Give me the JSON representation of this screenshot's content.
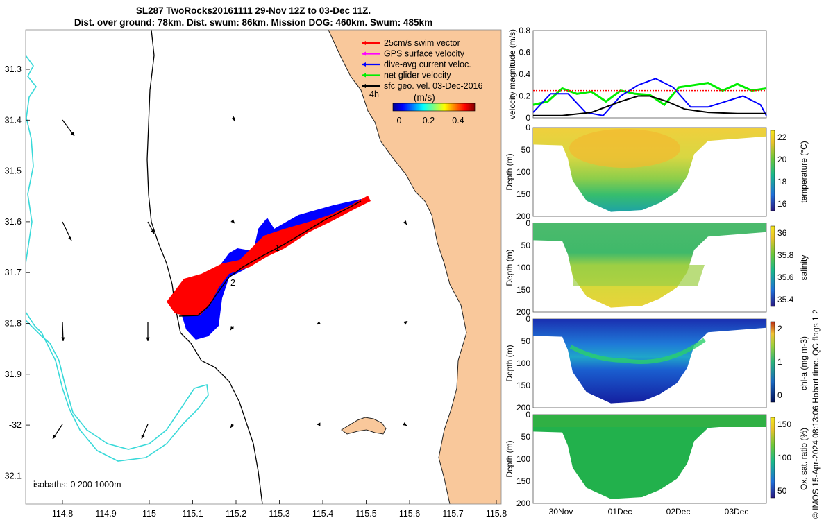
{
  "title": {
    "line1": "SL287 TwoRocks20161111 29-Nov 12Z to 03-Dec 11Z.",
    "line2": "Dist. over ground: 78km. Dist. swum: 86km. Mission DOG: 460km. Swum: 485km"
  },
  "colors": {
    "land": "#f9c89b",
    "isobath200": "#000000",
    "isobath1000": "#38d9d9",
    "swim": "#ff0000",
    "gps": "#ff00ff",
    "current": "#0000ff",
    "net": "#00ee00",
    "geo": "#000000"
  },
  "map": {
    "lon_ticks": [
      "114.8",
      "114.9",
      "115",
      "115.1",
      "115.2",
      "115.3",
      "115.4",
      "115.5",
      "115.6",
      "115.7",
      "115.8"
    ],
    "lat_ticks": [
      "31.3",
      "31.4",
      "31.5",
      "31.6",
      "31.7",
      "31.8",
      "31.9",
      "-32",
      "32.1"
    ],
    "legend": [
      {
        "label": "25cm/s swim vector",
        "color": "#ff0000"
      },
      {
        "label": "GPS surface velocity",
        "color": "#ff00ff"
      },
      {
        "label": "dive-avg current veloc.",
        "color": "#0000ff"
      },
      {
        "label": "net glider velocity",
        "color": "#00ee00"
      },
      {
        "label": "sfc geo. vel. 03-Dec-2016",
        "color": "#000000"
      }
    ],
    "legend_hour": "4h",
    "colorbar_unit": "(m/s)",
    "colorbar_ticks": [
      "0",
      "0.2",
      "0.4"
    ],
    "isobath_note": "isobaths: 0   200  1000m",
    "track_labels": [
      "1",
      "2"
    ]
  },
  "chart_data": [
    {
      "type": "line",
      "title": "",
      "ylabel": "velocity magnitude (m/s)",
      "ylim": [
        0,
        0.8
      ],
      "yticks": [
        "0",
        "0.2",
        "0.4",
        "0.6",
        "0.8"
      ],
      "x_range_days": [
        0,
        4
      ],
      "series": [
        {
          "name": "net glider velocity",
          "color": "#00ee00",
          "x": [
            0,
            0.25,
            0.5,
            0.75,
            1.0,
            1.25,
            1.5,
            1.75,
            2.0,
            2.25,
            2.5,
            2.75,
            3.0,
            3.25,
            3.5,
            3.75,
            4.0
          ],
          "values": [
            0.12,
            0.15,
            0.27,
            0.22,
            0.24,
            0.15,
            0.25,
            0.22,
            0.21,
            0.12,
            0.28,
            0.3,
            0.32,
            0.25,
            0.31,
            0.25,
            0.27
          ]
        },
        {
          "name": "dive-avg current veloc.",
          "color": "#0000ff",
          "x": [
            0,
            0.3,
            0.6,
            0.9,
            1.2,
            1.5,
            1.8,
            2.1,
            2.4,
            2.7,
            3.0,
            3.3,
            3.6,
            3.9,
            4.0
          ],
          "values": [
            0.05,
            0.22,
            0.22,
            0.05,
            0.02,
            0.2,
            0.3,
            0.36,
            0.28,
            0.1,
            0.1,
            0.15,
            0.2,
            0.12,
            0.02
          ]
        },
        {
          "name": "sfc geo. vel.",
          "color": "#000000",
          "x": [
            0,
            0.5,
            1.0,
            1.5,
            1.8,
            2.0,
            2.3,
            2.6,
            3.0,
            3.5,
            4.0
          ],
          "values": [
            0.02,
            0.02,
            0.05,
            0.15,
            0.2,
            0.2,
            0.15,
            0.08,
            0.05,
            0.04,
            0.04
          ]
        },
        {
          "name": "swim vector",
          "color": "#ff0000",
          "x": [
            0,
            4.0
          ],
          "values": [
            0.25,
            0.25
          ]
        }
      ]
    },
    {
      "type": "heatmap",
      "ylabel": "Depth (m)",
      "yticks": [
        "0",
        "50",
        "100",
        "150",
        "200"
      ],
      "cbar_label": "temperature (°C)",
      "cbar_ticks": [
        "22",
        "20",
        "18",
        "16"
      ],
      "clim": [
        14.5,
        23
      ]
    },
    {
      "type": "heatmap",
      "ylabel": "Depth (m)",
      "yticks": [
        "0",
        "50",
        "100",
        "150",
        "200"
      ],
      "cbar_label": "salinity",
      "cbar_ticks": [
        "36",
        "35.8",
        "35.6",
        "35.4"
      ],
      "clim": [
        35.35,
        36.1
      ]
    },
    {
      "type": "heatmap",
      "ylabel": "Depth (m)",
      "yticks": [
        "0",
        "50",
        "100",
        "150",
        "200"
      ],
      "cbar_label": "chl-a (mg m-3)",
      "cbar_ticks": [
        "2",
        "1",
        "0"
      ],
      "clim": [
        0,
        2
      ]
    },
    {
      "type": "heatmap",
      "ylabel": "Depth (m)",
      "yticks": [
        "0",
        "50",
        "100",
        "150",
        "200"
      ],
      "cbar_label": "Ox. sat. ratio (%)",
      "cbar_ticks": [
        "150",
        "100",
        "50"
      ],
      "clim": [
        25,
        175
      ],
      "x_ticks": [
        "30Nov",
        "01Dec",
        "02Dec",
        "03Dec"
      ]
    }
  ],
  "credit": "© IMOS 15-Apr-2024 08:13:06 Hobart time. QC flags 1  2"
}
